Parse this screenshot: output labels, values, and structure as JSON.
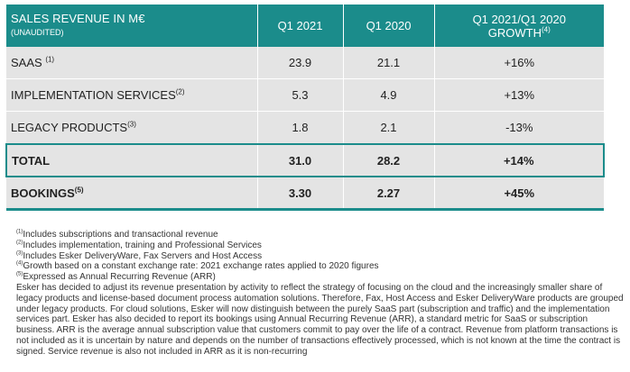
{
  "table": {
    "header": {
      "label": "SALES REVENUE IN M€",
      "sublabel": "(UNAUDITED)",
      "col1": "Q1 2021",
      "col2": "Q1 2020",
      "col3_line1": "Q1 2021/Q1 2020",
      "col3_line2": "GROWTH",
      "col3_note": "(4)"
    },
    "rows": [
      {
        "label": "SAAS",
        "note": "(1)",
        "q1_2021": "23.9",
        "q1_2020": "21.1",
        "growth": "+16%"
      },
      {
        "label": "IMPLEMENTATION SERVICES",
        "note": "(2)",
        "q1_2021": "5.3",
        "q1_2020": "4.9",
        "growth": "+13%"
      },
      {
        "label": "LEGACY PRODUCTS",
        "note": "(3)",
        "q1_2021": "1.8",
        "q1_2020": "2.1",
        "growth": "-13%"
      },
      {
        "label": "TOTAL",
        "note": "",
        "q1_2021": "31.0",
        "q1_2020": "28.2",
        "growth": "+14%"
      },
      {
        "label": "BOOKINGS",
        "note": "(5)",
        "q1_2021": "3.30",
        "q1_2020": "2.27",
        "growth": "+45%"
      }
    ]
  },
  "footnotes": [
    {
      "mark": "(1)",
      "text": "Includes subscriptions and transactional revenue"
    },
    {
      "mark": "(2)",
      "text": "Includes implementation, training and Professional Services"
    },
    {
      "mark": "(3)",
      "text": "Includes Esker DeliveryWare, Fax Servers and Host Access"
    },
    {
      "mark": "(4)",
      "text": "Growth based on a constant exchange rate: 2021 exchange rates applied to 2020 figures"
    },
    {
      "mark": "(5)",
      "text": "Expressed as Annual Recurring Revenue (ARR)"
    }
  ],
  "paragraph": "Esker has decided to adjust its revenue presentation by activity to reflect the strategy of focusing on the cloud and the increasingly smaller share of legacy products and license-based document process automation solutions. Therefore, Fax, Host Access and Esker DeliveryWare products are grouped under legacy products. For cloud solutions, Esker will now distinguish between the purely SaaS part (subscription and traffic) and the implementation services part. Esker has also decided to report its bookings using Annual Recurring Revenue (ARR), a standard metric for SaaS or subscription business. ARR is the average annual subscription value that customers commit to pay over the life of a contract. Revenue from platform transactions is not included as it is uncertain by nature and depends on the number of transactions effectively processed, which is not known at the time the contract is signed. Service revenue is also not included in ARR as it is non-recurring",
  "colors": {
    "header_bg": "#1b8c8b",
    "row_bg": "#e4e4e4"
  }
}
